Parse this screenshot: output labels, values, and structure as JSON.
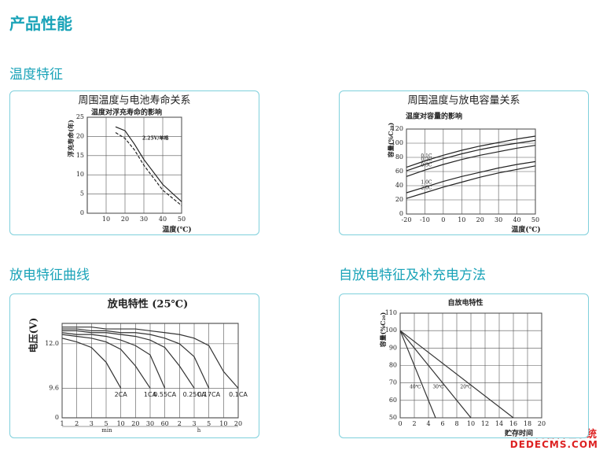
{
  "header": {
    "title": "产品性能"
  },
  "sections": [
    {
      "title": "温度特征",
      "cards": [
        {
          "caption": "周围温度与电池寿命关系",
          "chart": {
            "type": "line",
            "title": "温度对浮充寿命的影响",
            "x_label": "温度(℃)",
            "y_label": "浮充寿命(年)",
            "annotation": "2.25V/单格",
            "xlim": [
              0,
              50
            ],
            "xticks": [
              10,
              20,
              30,
              40,
              50
            ],
            "ylim": [
              0,
              25
            ],
            "yticks": [
              0,
              5,
              10,
              15,
              20,
              25
            ],
            "grid": true,
            "x": [
              15,
              20,
              25,
              30,
              40,
              50
            ],
            "series": [
              {
                "color": "#222",
                "dash": false,
                "values": [
                  22.5,
                  21.5,
                  18,
                  14,
                  7.5,
                  3
                ]
              },
              {
                "color": "#222",
                "dash": true,
                "values": [
                  21,
                  19.5,
                  16.5,
                  12.5,
                  6,
                  2
                ]
              }
            ]
          }
        },
        {
          "caption": "周围温度与放电容量关系",
          "chart": {
            "type": "line",
            "title": "温度对容量的影响",
            "x_label": "温度(℃)",
            "y_label": "容量(%C₂₀)",
            "xlim": [
              -20,
              50
            ],
            "xticks": [
              -20,
              -10,
              0,
              10,
              20,
              30,
              40,
              50
            ],
            "ylim": [
              0,
              120
            ],
            "yticks": [
              0,
              20,
              40,
              60,
              80,
              100,
              120
            ],
            "grid": true,
            "x": [
              -20,
              -10,
              0,
              10,
              20,
              30,
              40,
              50
            ],
            "series": [
              {
                "name": "0.1C",
                "color": "#222",
                "values": [
                  66,
                  75,
                  83,
                  90,
                  96,
                  101,
                  106,
                  110
                ]
              },
              {
                "name": "0.2C",
                "color": "#222",
                "values": [
                  61,
                  70,
                  78,
                  85,
                  91,
                  96,
                  100,
                  104
                ]
              },
              {
                "name": "0.3C",
                "color": "#222",
                "values": [
                  53,
                  62,
                  70,
                  77,
                  83,
                  88,
                  93,
                  97
                ]
              },
              {
                "name": "1.0C",
                "color": "#222",
                "values": [
                  30,
                  38,
                  46,
                  53,
                  59,
                  65,
                  70,
                  74
                ]
              },
              {
                "name": "2.0C",
                "color": "#222",
                "values": [
                  22,
                  30,
                  38,
                  45,
                  52,
                  58,
                  63,
                  68
                ]
              }
            ]
          }
        }
      ]
    },
    {
      "title": "放电特征曲线",
      "cards": [
        {
          "chart": {
            "type": "line",
            "title": "放电特性 (25℃)",
            "y_label": "电压(V)",
            "categories": [
              "1",
              "2",
              "3",
              "5",
              "10",
              "20",
              "30",
              "60",
              "2",
              "3",
              "5",
              "10",
              "20"
            ],
            "x_unit_labels": [
              "min",
              "h"
            ],
            "ylim": [
              8,
              13.1
            ],
            "yticks": [
              9.6,
              {
                "value": 12,
                "label": "12.0"
              }
            ],
            "y_origin_label": "0",
            "grid": true,
            "series": [
              {
                "name": "2CA",
                "color": "#333",
                "values": [
                  12.3,
                  12.1,
                  11.8,
                  11.0,
                  9.6,
                  null,
                  null,
                  null,
                  null,
                  null,
                  null,
                  null,
                  null
                ]
              },
              {
                "name": "1CA",
                "color": "#333",
                "values": [
                  12.5,
                  12.4,
                  12.3,
                  12.1,
                  11.7,
                  10.8,
                  9.6,
                  null,
                  null,
                  null,
                  null,
                  null,
                  null
                ]
              },
              {
                "name": "0.55CA",
                "color": "#333",
                "values": [
                  12.6,
                  12.5,
                  12.5,
                  12.4,
                  12.2,
                  11.9,
                  11.4,
                  9.6,
                  null,
                  null,
                  null,
                  null,
                  null
                ]
              },
              {
                "name": "0.25CA",
                "color": "#333",
                "values": [
                  12.7,
                  12.7,
                  12.6,
                  12.6,
                  12.5,
                  12.4,
                  12.2,
                  11.8,
                  10.8,
                  9.6,
                  null,
                  null,
                  null
                ]
              },
              {
                "name": "0.17CA",
                "color": "#333",
                "values": [
                  12.8,
                  12.8,
                  12.7,
                  12.7,
                  12.6,
                  12.6,
                  12.5,
                  12.3,
                  12.0,
                  11.3,
                  9.6,
                  null,
                  null
                ]
              },
              {
                "name": "0.1CA",
                "color": "#333",
                "values": [
                  12.9,
                  12.9,
                  12.9,
                  12.8,
                  12.8,
                  12.8,
                  12.7,
                  12.6,
                  12.5,
                  12.3,
                  11.9,
                  10.5,
                  9.6
                ]
              }
            ]
          }
        }
      ]
    },
    {
      "title": "自放电特征及补充电方法",
      "cards": [
        {
          "chart": {
            "type": "line",
            "title": "自放电特性",
            "x_label": "贮存时间",
            "y_label": "容量(%C₂₀)",
            "xlim": [
              0,
              20
            ],
            "xticks": [
              0,
              2,
              4,
              6,
              8,
              10,
              12,
              14,
              16,
              18,
              20
            ],
            "ylim": [
              50,
              110
            ],
            "yticks": [
              50,
              60,
              70,
              80,
              90,
              100,
              110
            ],
            "grid": true,
            "series": [
              {
                "name": "40℃",
                "color": "#333",
                "x": [
                  0,
                  5
                ],
                "values": [
                  100,
                  50
                ]
              },
              {
                "name": "30℃",
                "color": "#333",
                "x": [
                  0,
                  10
                ],
                "values": [
                  100,
                  50
                ]
              },
              {
                "name": "20℃",
                "color": "#333",
                "x": [
                  0,
                  16
                ],
                "values": [
                  100,
                  50
                ]
              }
            ]
          }
        }
      ]
    }
  ],
  "watermark": {
    "line1": "织梦内容管理系统",
    "line2": "DEDECMS.COM"
  }
}
